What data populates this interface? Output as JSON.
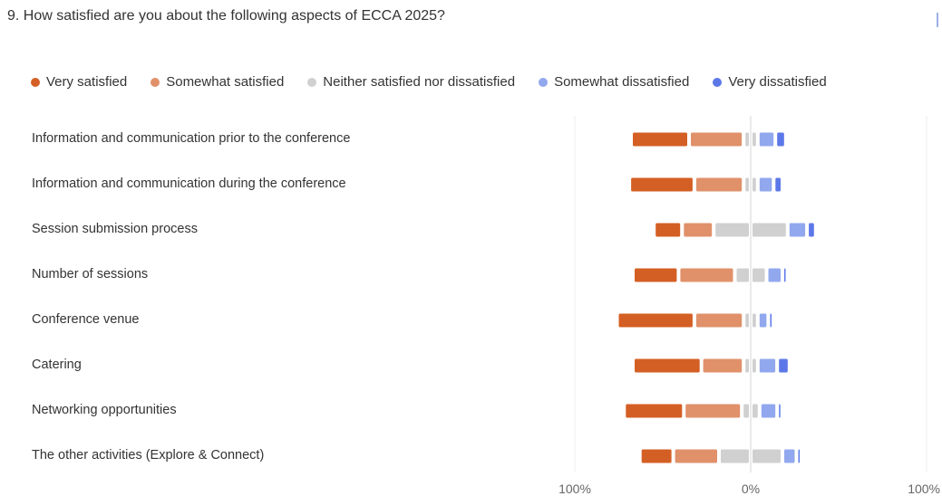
{
  "question": "9. How satisfied are you about the following aspects of ECCA 2025?",
  "chart_data": {
    "type": "bar",
    "subtype": "diverging-stacked",
    "title": "9. How satisfied are you about the following aspects of ECCA 2025?",
    "categories": [
      "Information and communication prior to the conference",
      "Information and communication during the conference",
      "Session submission process",
      "Number of sessions",
      "Conference venue",
      "Catering",
      "Networking opportunities",
      "The other activities (Explore & Connect)"
    ],
    "series": [
      {
        "name": "Very satisfied",
        "color": "#d45f24",
        "values": [
          33,
          37,
          16,
          26,
          44,
          39,
          34,
          19
        ]
      },
      {
        "name": "Somewhat satisfied",
        "color": "#e0916a",
        "values": [
          31,
          28,
          18,
          32,
          28,
          24,
          33,
          26
        ]
      },
      {
        "name": "Neither satisfied nor dissatisfied",
        "color": "#d0d0d0",
        "values": [
          6,
          6,
          40,
          16,
          6,
          6,
          8,
          34
        ]
      },
      {
        "name": "Somewhat dissatisfied",
        "color": "#92a8ee",
        "values": [
          10,
          9,
          11,
          9,
          6,
          11,
          10,
          8
        ]
      },
      {
        "name": "Very dissatisfied",
        "color": "#5c78e8",
        "values": [
          6,
          5,
          5,
          2,
          1,
          7,
          1,
          2
        ]
      }
    ],
    "neutral_split": "half-left-half-right",
    "x_ticks": [
      "100%",
      "0%",
      "100%"
    ],
    "xlim": [
      -100,
      100
    ],
    "legend_position": "top",
    "grid": true
  }
}
